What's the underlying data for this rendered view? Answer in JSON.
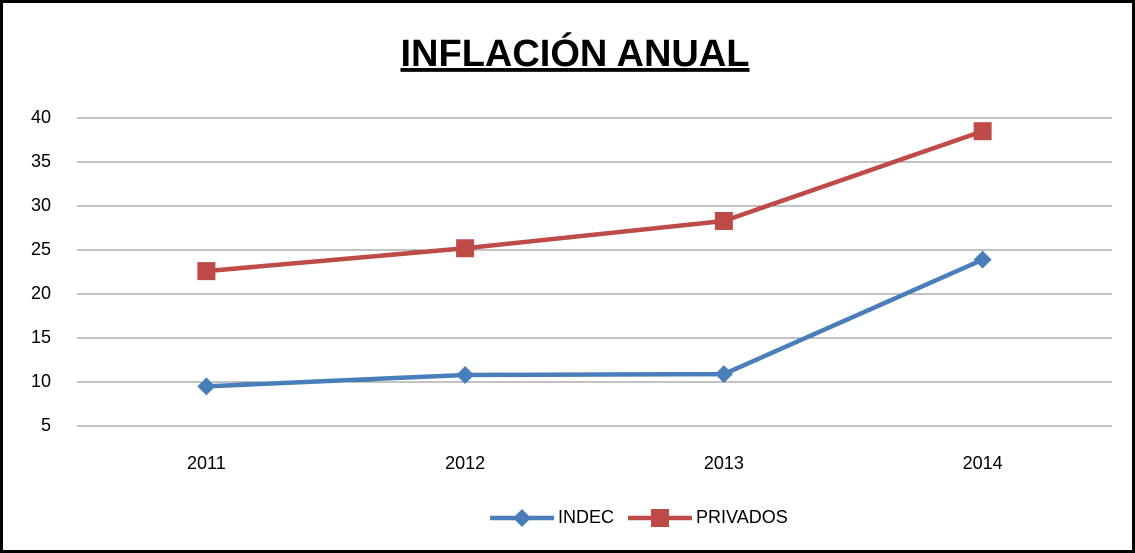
{
  "chart_data": {
    "type": "line",
    "title": "INFLACIÓN ANUAL",
    "categories": [
      "2011",
      "2012",
      "2013",
      "2014"
    ],
    "series": [
      {
        "name": "INDEC",
        "color": "#4a7ebb",
        "marker": "diamond",
        "values": [
          9.5,
          10.8,
          10.9,
          23.9
        ]
      },
      {
        "name": "PRIVADOS",
        "color": "#be4b48",
        "marker": "square",
        "values": [
          22.6,
          25.2,
          28.3,
          38.5
        ]
      }
    ],
    "ylim": [
      5,
      40
    ],
    "yticks": [
      5,
      10,
      15,
      20,
      25,
      30,
      35,
      40
    ],
    "grid": true,
    "legend": "bottom"
  }
}
